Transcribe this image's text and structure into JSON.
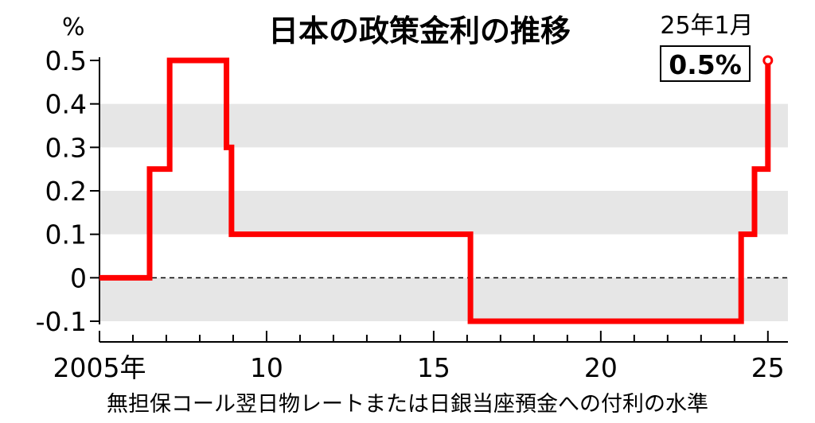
{
  "chart_data": {
    "type": "line",
    "step": true,
    "title": "日本の政策金利の推移",
    "ylabel": "%",
    "footnote": "無担保コール翌日物レートまたは日銀当座預金への付利の水準",
    "ylim": [
      -0.1,
      0.5
    ],
    "yticks": [
      "0.5",
      "0.4",
      "0.3",
      "0.2",
      "0.1",
      "0",
      "-0.1"
    ],
    "ytick_values": [
      0.5,
      0.4,
      0.3,
      0.2,
      0.1,
      0,
      -0.1
    ],
    "xlim": [
      2005,
      2025.6
    ],
    "xticks": [
      {
        "value": 2005,
        "label": "2005年"
      },
      {
        "value": 2010,
        "label": "10"
      },
      {
        "value": 2015,
        "label": "15"
      },
      {
        "value": 2020,
        "label": "20"
      },
      {
        "value": 2025,
        "label": "25"
      }
    ],
    "band_color": "#e6e6e6",
    "line_color": "#ff0000",
    "series": [
      {
        "x": [
          2005.0,
          2006.5,
          2007.1,
          2008.8,
          2008.95,
          2016.1,
          2024.2,
          2024.6,
          2025.0
        ],
        "values": [
          0,
          0.25,
          0.5,
          0.3,
          0.1,
          -0.1,
          0.1,
          0.25,
          0.5
        ]
      }
    ],
    "annotation": {
      "date_label": "25年1月",
      "value_label": "0.5%",
      "x": 2025.0,
      "y": 0.5
    }
  }
}
